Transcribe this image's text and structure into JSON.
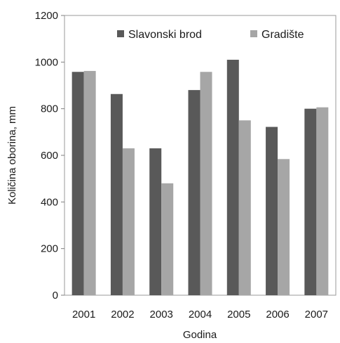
{
  "chart_data": {
    "type": "bar",
    "title": "",
    "xlabel": "Godina",
    "ylabel": "Količina oborina, mm",
    "ylim": [
      0,
      1200
    ],
    "yticks": [
      0,
      200,
      400,
      600,
      800,
      1000,
      1200
    ],
    "grid": false,
    "legend_position": "top",
    "categories": [
      "2001",
      "2002",
      "2003",
      "2004",
      "2005",
      "2006",
      "2007"
    ],
    "series": [
      {
        "name": "Slavonski brod",
        "color": "#595959",
        "values": [
          958,
          863,
          630,
          880,
          1010,
          722,
          800
        ]
      },
      {
        "name": "Gradište",
        "color": "#a6a6a6",
        "values": [
          962,
          630,
          480,
          958,
          750,
          584,
          806
        ]
      }
    ]
  }
}
